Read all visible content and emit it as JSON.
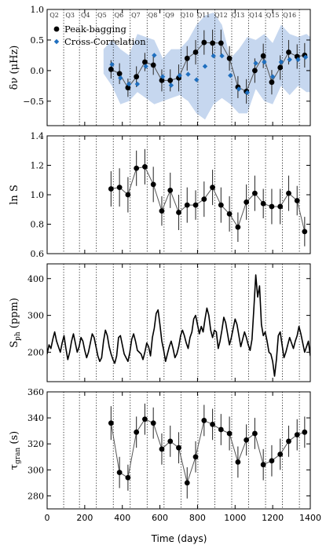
{
  "colors": {
    "peak": "#000000",
    "peak_line": "#555555",
    "cross": "#1f6fbf",
    "band": "#c6d7ef",
    "dotted": "#000000"
  },
  "xaxis": {
    "label": "Time (days)",
    "xlim": [
      0,
      1400
    ],
    "ticks": [
      0,
      200,
      400,
      600,
      800,
      1000,
      1200,
      1400
    ],
    "tick_labels": [
      "0",
      "200",
      "400",
      "600",
      "800",
      "1000",
      "1200",
      "1400"
    ]
  },
  "quarters": {
    "labels": [
      "Q2",
      "Q3",
      "Q4",
      "Q5",
      "Q6",
      "Q7",
      "Q8",
      "Q9",
      "Q10",
      "Q11",
      "Q12",
      "Q13",
      "Q14",
      "Q15",
      "Q16"
    ],
    "centers": [
      38,
      122,
      204,
      292,
      382,
      472,
      562,
      652,
      744,
      832,
      925,
      1015,
      1110,
      1200,
      1290,
      1370
    ],
    "boundaries": [
      88,
      172,
      262,
      352,
      442,
      532,
      622,
      712,
      802,
      892,
      982,
      1072,
      1162,
      1252,
      1342
    ]
  },
  "chart_data": [
    {
      "type": "scatter",
      "ylabel": "δν (μHz)",
      "ylim": [
        -0.9,
        1.0
      ],
      "yticks": [
        -0.5,
        0.0,
        0.5,
        1.0
      ],
      "ytick_labels": [
        "−0.5",
        "0.0",
        "0.5",
        "1.0"
      ],
      "legend": {
        "position": "top-left",
        "entries": [
          "Peak-bagging",
          "Cross-Correlation"
        ]
      },
      "band": {
        "x": [
          300,
          345,
          390,
          435,
          480,
          525,
          570,
          615,
          660,
          705,
          750,
          795,
          840,
          885,
          930,
          975,
          1020,
          1065,
          1110,
          1155,
          1200,
          1245,
          1290,
          1335,
          1380,
          1400
        ],
        "upper": [
          0.35,
          0.5,
          0.35,
          0.25,
          0.6,
          0.55,
          0.5,
          0.2,
          0.35,
          0.35,
          0.5,
          0.75,
          0.9,
          0.95,
          0.75,
          0.2,
          0.35,
          0.55,
          0.5,
          0.6,
          0.45,
          0.75,
          0.6,
          0.55,
          0.6,
          0.55
        ],
        "lower": [
          -0.05,
          -0.25,
          -0.55,
          -0.5,
          -0.35,
          -0.45,
          -0.55,
          -0.5,
          -0.45,
          -0.4,
          -0.5,
          -0.7,
          -0.8,
          -0.55,
          -0.45,
          -0.55,
          -0.7,
          -0.7,
          -0.3,
          -0.5,
          -0.55,
          -0.25,
          -0.4,
          -0.25,
          -0.35,
          -0.35
        ]
      },
      "series": [
        {
          "name": "Peak-bagging",
          "x": [
            340,
            385,
            430,
            475,
            520,
            565,
            610,
            655,
            700,
            745,
            790,
            835,
            880,
            925,
            970,
            1015,
            1060,
            1105,
            1150,
            1195,
            1240,
            1285,
            1330,
            1370
          ],
          "y": [
            0.02,
            -0.05,
            -0.28,
            -0.1,
            0.14,
            0.09,
            -0.16,
            -0.16,
            -0.12,
            0.2,
            0.3,
            0.46,
            0.45,
            0.45,
            0.2,
            -0.27,
            -0.34,
            0.0,
            0.24,
            -0.19,
            0.05,
            0.3,
            0.23,
            0.25
          ],
          "err": [
            0.15,
            0.17,
            0.15,
            0.17,
            0.15,
            0.16,
            0.18,
            0.18,
            0.22,
            0.2,
            0.2,
            0.2,
            0.22,
            0.22,
            0.2,
            0.18,
            0.2,
            0.2,
            0.2,
            0.2,
            0.2,
            0.2,
            0.2,
            0.2
          ]
        },
        {
          "name": "Cross-Correlation",
          "x": [
            345,
            390,
            435,
            480,
            525,
            570,
            615,
            660,
            705,
            750,
            795,
            840,
            885,
            930,
            975,
            1020,
            1065,
            1110,
            1155,
            1200,
            1245,
            1290,
            1335,
            1375
          ],
          "y": [
            0.1,
            -0.12,
            -0.22,
            -0.22,
            0.07,
            0.25,
            -0.1,
            -0.24,
            -0.08,
            -0.06,
            -0.15,
            0.07,
            0.24,
            0.24,
            -0.08,
            -0.3,
            -0.36,
            0.12,
            0.14,
            -0.1,
            0.14,
            0.18,
            0.18,
            0.22
          ]
        }
      ]
    },
    {
      "type": "scatter",
      "ylabel": "ln S",
      "ylim": [
        0.6,
        1.4
      ],
      "yticks": [
        0.6,
        0.8,
        1.0,
        1.2,
        1.4
      ],
      "ytick_labels": [
        "0.6",
        "0.8",
        "1.0",
        "1.2",
        "1.4"
      ],
      "series": [
        {
          "name": "",
          "x": [
            340,
            385,
            430,
            475,
            520,
            565,
            610,
            655,
            700,
            745,
            790,
            835,
            880,
            925,
            970,
            1015,
            1060,
            1105,
            1150,
            1195,
            1240,
            1285,
            1330,
            1370
          ],
          "y": [
            1.04,
            1.05,
            1.0,
            1.18,
            1.19,
            1.07,
            0.89,
            1.03,
            0.88,
            0.93,
            0.93,
            0.97,
            1.05,
            0.93,
            0.87,
            0.78,
            0.95,
            1.01,
            0.94,
            0.92,
            0.92,
            1.01,
            0.96,
            0.75
          ],
          "err": [
            0.12,
            0.13,
            0.12,
            0.12,
            0.12,
            0.12,
            0.1,
            0.12,
            0.12,
            0.12,
            0.1,
            0.12,
            0.12,
            0.12,
            0.12,
            0.1,
            0.12,
            0.12,
            0.1,
            0.12,
            0.12,
            0.12,
            0.1,
            0.1
          ]
        }
      ]
    },
    {
      "type": "line",
      "ylabel": "S_ph (ppm)",
      "ylim": [
        120,
        440
      ],
      "yticks": [
        200,
        300,
        400
      ],
      "ytick_labels": [
        "200",
        "300",
        "400"
      ],
      "series": [
        {
          "name": "",
          "x": [
            0,
            10,
            20,
            30,
            40,
            50,
            60,
            70,
            80,
            90,
            100,
            110,
            120,
            130,
            140,
            150,
            160,
            170,
            180,
            190,
            200,
            210,
            220,
            230,
            240,
            250,
            260,
            270,
            280,
            290,
            300,
            310,
            320,
            330,
            340,
            350,
            360,
            370,
            380,
            390,
            400,
            410,
            420,
            430,
            440,
            450,
            460,
            470,
            480,
            490,
            500,
            510,
            520,
            530,
            540,
            550,
            560,
            570,
            580,
            590,
            600,
            610,
            620,
            630,
            640,
            650,
            660,
            670,
            680,
            690,
            700,
            710,
            720,
            730,
            740,
            750,
            760,
            770,
            780,
            790,
            800,
            810,
            820,
            830,
            840,
            850,
            860,
            870,
            880,
            890,
            900,
            910,
            920,
            930,
            940,
            950,
            960,
            970,
            980,
            990,
            1000,
            1010,
            1020,
            1030,
            1040,
            1050,
            1060,
            1070,
            1080,
            1090,
            1100,
            1110,
            1120,
            1130,
            1140,
            1150,
            1160,
            1170,
            1180,
            1190,
            1200,
            1210,
            1220,
            1230,
            1240,
            1250,
            1260,
            1270,
            1280,
            1290,
            1300,
            1310,
            1320,
            1330,
            1340,
            1350,
            1360,
            1370,
            1380,
            1390,
            1400
          ],
          "y": [
            195,
            220,
            210,
            235,
            255,
            230,
            215,
            200,
            225,
            245,
            210,
            180,
            200,
            230,
            250,
            225,
            200,
            215,
            240,
            230,
            205,
            185,
            200,
            225,
            250,
            240,
            215,
            190,
            175,
            185,
            230,
            260,
            245,
            215,
            195,
            180,
            170,
            190,
            240,
            245,
            220,
            195,
            185,
            175,
            200,
            235,
            250,
            230,
            205,
            200,
            195,
            180,
            200,
            225,
            215,
            190,
            240,
            265,
            305,
            315,
            275,
            230,
            205,
            175,
            195,
            215,
            230,
            210,
            185,
            195,
            215,
            245,
            260,
            245,
            225,
            210,
            240,
            255,
            290,
            300,
            275,
            250,
            270,
            255,
            290,
            320,
            300,
            260,
            240,
            260,
            255,
            210,
            230,
            260,
            295,
            280,
            250,
            220,
            240,
            265,
            290,
            275,
            245,
            215,
            235,
            255,
            240,
            220,
            205,
            235,
            320,
            410,
            350,
            380,
            275,
            245,
            255,
            230,
            200,
            195,
            175,
            135,
            180,
            245,
            255,
            220,
            185,
            200,
            220,
            240,
            225,
            210,
            230,
            245,
            270,
            250,
            225,
            200,
            215,
            230,
            190
          ]
        }
      ]
    },
    {
      "type": "scatter",
      "ylabel": "τ_gran (s)",
      "ylim": [
        270,
        360
      ],
      "yticks": [
        280,
        300,
        320,
        340,
        360
      ],
      "ytick_labels": [
        "280",
        "300",
        "320",
        "340",
        "360"
      ],
      "series": [
        {
          "name": "",
          "x": [
            340,
            385,
            430,
            475,
            520,
            565,
            610,
            655,
            700,
            745,
            790,
            835,
            880,
            925,
            970,
            1015,
            1060,
            1105,
            1150,
            1195,
            1240,
            1285,
            1330,
            1370
          ],
          "y": [
            336,
            298,
            294,
            329,
            339,
            336,
            316,
            322,
            317,
            290,
            310,
            338,
            335,
            331,
            328,
            306,
            323,
            328,
            304,
            307,
            312,
            322,
            327,
            329
          ],
          "err": [
            13,
            12,
            10,
            12,
            12,
            12,
            12,
            12,
            12,
            12,
            12,
            12,
            12,
            12,
            13,
            12,
            12,
            12,
            12,
            12,
            12,
            12,
            12,
            12
          ]
        }
      ]
    }
  ]
}
